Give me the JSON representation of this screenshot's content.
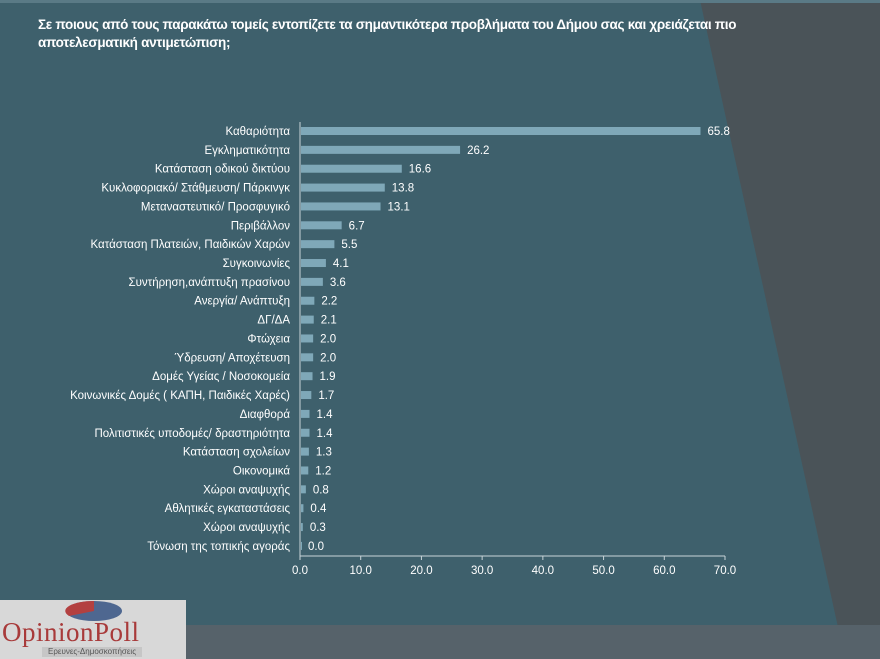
{
  "colors": {
    "background": "#3e606c",
    "bar": "#7fa8b8",
    "text": "#ffffff",
    "logo_red": "#b34040",
    "logo_blue": "#4e6790"
  },
  "logo": {
    "name": "OpinionPoll",
    "word1": "Opinion",
    "word2": "Poll",
    "tagline": "Ερευνες-Δημοσκοπήσεις"
  },
  "chart_data": {
    "type": "bar",
    "orientation": "horizontal",
    "title": "Σε ποιους από τους παρακάτω τομείς εντοπίζετε τα σημαντικότερα προβλήματα του Δήμου σας και χρειάζεται πιο αποτελεσματική αντιμετώπιση;",
    "categories": [
      "Καθαριότητα",
      "Εγκληματικότητα",
      "Κατάσταση οδικού δικτύου",
      "Κυκλοφοριακό/ Στάθμευση/ Πάρκινγκ",
      "Μεταναστευτικό/ Προσφυγικό",
      "Περιβάλλον",
      "Κατάσταση Πλατειών, Παιδικών Χαρών",
      "Συγκοινωνίες",
      "Συντήρηση,ανάπτυξη πρασίνου",
      "Ανεργία/ Ανάπτυξη",
      "ΔΓ/ΔΑ",
      "Φτώχεια",
      "Ύδρευση/ Αποχέτευση",
      "Δομές Υγείας / Νοσοκομεία",
      "Κοινωνικές Δομές ( ΚΑΠΗ, Παιδικές Χαρές)",
      "Διαφθορά",
      "Πολιτιστικές υποδομές/ δραστηριότητα",
      "Κατάσταση σχολείων",
      "Οικονομικά",
      "Χώροι αναψυχής",
      "Αθλητικές εγκαταστάσεις",
      "Χώροι αναψυχής",
      "Τόνωση της τοπικής αγοράς"
    ],
    "values": [
      65.8,
      26.2,
      16.6,
      13.8,
      13.1,
      6.7,
      5.5,
      4.1,
      3.6,
      2.2,
      2.1,
      2.0,
      2.0,
      1.9,
      1.7,
      1.4,
      1.4,
      1.3,
      1.2,
      0.8,
      0.4,
      0.3,
      0.0
    ],
    "value_labels": [
      "65.8",
      "26.2",
      "16.6",
      "13.8",
      "13.1",
      "6.7",
      "5.5",
      "4.1",
      "3.6",
      "2.2",
      "2.1",
      "2.0",
      "2.0",
      "1.9",
      "1.7",
      "1.4",
      "1.4",
      "1.3",
      "1.2",
      "0.8",
      "0.4",
      "0.3",
      "0.0"
    ],
    "xlim": [
      0,
      70
    ],
    "xticks": [
      "0.0",
      "10.0",
      "20.0",
      "30.0",
      "40.0",
      "50.0",
      "60.0",
      "70.0"
    ],
    "grid": false,
    "legend": "none"
  }
}
